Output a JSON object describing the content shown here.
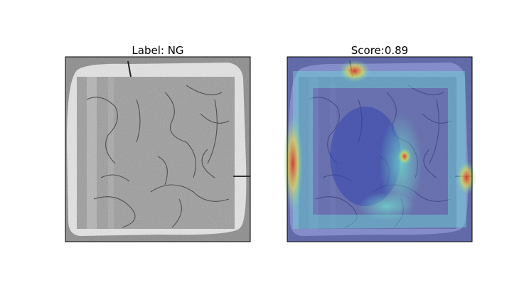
{
  "panels": [
    {
      "title": "Label: NG"
    },
    {
      "title": "Score:0.89"
    }
  ]
}
